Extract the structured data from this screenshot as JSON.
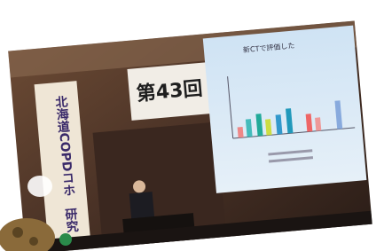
{
  "photo": {
    "banner": "第43回",
    "vertical_banner": [
      "北海道COPDコホ",
      "研究"
    ],
    "slide_title": "新CTで評価した"
  }
}
